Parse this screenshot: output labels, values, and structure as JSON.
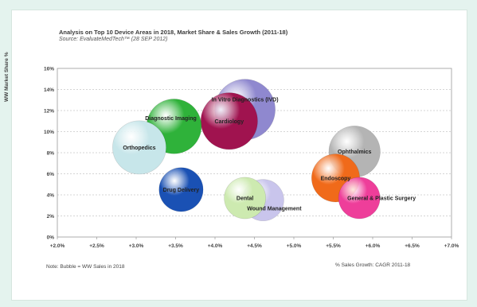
{
  "chart_data": {
    "type": "bubble",
    "title": "Analysis on Top 10 Device Areas in 2018, Market Share & Sales Growth (2011-18)",
    "subtitle": "Source: EvaluateMedTech™ (28 SEP 2012)",
    "xlabel": "% Sales Growth: CAGR 2011-18",
    "ylabel": "WW Market Share %",
    "note": "Note: Bubble = WW Sales in 2018",
    "xlim": [
      2.0,
      7.0
    ],
    "ylim": [
      0,
      16
    ],
    "x_ticks": [
      "+2.0%",
      "+2.5%",
      "+3.0%",
      "+3.5%",
      "+4.0%",
      "+4.5%",
      "+5.0%",
      "+5.5%",
      "+6.0%",
      "+6.5%",
      "+7.0%"
    ],
    "y_ticks": [
      "0%",
      "2%",
      "4%",
      "6%",
      "8%",
      "10%",
      "12%",
      "14%",
      "16%"
    ],
    "grid": true,
    "series": [
      {
        "label": "In Vitro Diagnostics (IVD)",
        "x": 4.38,
        "y": 12.1,
        "size": 1.0,
        "color": "#8f88cf"
      },
      {
        "label": "Cardiology",
        "x": 4.18,
        "y": 11.0,
        "size": 0.88,
        "color": "#a0134f"
      },
      {
        "label": "Diagnostic Imaging",
        "x": 3.48,
        "y": 10.5,
        "size": 0.82,
        "color": "#2fb23a"
      },
      {
        "label": "Orthopedics",
        "x": 3.04,
        "y": 8.5,
        "size": 0.78,
        "color": "#c7e6ea"
      },
      {
        "label": "Ophthalmics",
        "x": 5.77,
        "y": 8.1,
        "size": 0.72,
        "color": "#b4b4b4"
      },
      {
        "label": "Endoscopy",
        "x": 5.53,
        "y": 5.6,
        "size": 0.63,
        "color": "#f06a1a"
      },
      {
        "label": "Drug Delivery",
        "x": 3.57,
        "y": 4.5,
        "size": 0.53,
        "color": "#1a51b4"
      },
      {
        "label": "Wound Management",
        "x": 4.61,
        "y": 3.5,
        "size": 0.47,
        "color": "#c9c5ec"
      },
      {
        "label": "Dental",
        "x": 4.38,
        "y": 3.7,
        "size": 0.47,
        "color": "#cdeab0"
      },
      {
        "label": "General & Plastic Surgery",
        "x": 5.83,
        "y": 3.7,
        "size": 0.47,
        "color": "#ee3e9a"
      }
    ]
  }
}
